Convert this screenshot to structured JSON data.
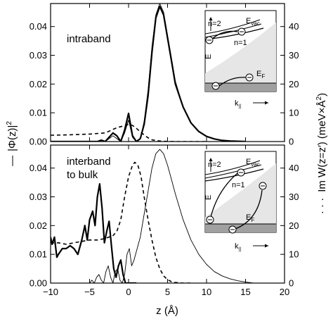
{
  "chart_data": [
    {
      "type": "line",
      "panel": "top",
      "annotation": "intraband",
      "xlim": [
        -10,
        20
      ],
      "ylim_left": [
        0,
        0.048
      ],
      "ylim_right": [
        0,
        48
      ],
      "left_ticks": [
        "0.00",
        "0.01",
        "0.02",
        "0.03",
        "0.04"
      ],
      "right_ticks": [
        "0",
        "10",
        "20",
        "30",
        "40"
      ],
      "series": [
        {
          "style": "thick-solid",
          "axis": "left",
          "x": [
            -10,
            -6,
            -4,
            -3.5,
            -3,
            -2.5,
            -2,
            -1.5,
            -1,
            -0.5,
            0,
            0.5,
            1,
            1.5,
            2,
            2.5,
            3,
            3.5,
            4,
            4.5,
            5,
            5.5,
            6,
            7,
            8,
            9,
            10,
            11,
            12,
            13,
            14,
            15
          ],
          "y": [
            0,
            0,
            0,
            0.0005,
            0,
            0.0015,
            0.003,
            0.002,
            0,
            0.004,
            0.0098,
            0.002,
            0,
            0.001,
            0.006,
            0.016,
            0.031,
            0.043,
            0.047,
            0.044,
            0.036,
            0.028,
            0.02,
            0.012,
            0.0065,
            0.0035,
            0.0018,
            0.0009,
            0.0004,
            0.0002,
            0.0001,
            0
          ]
        },
        {
          "style": "thin-solid",
          "axis": "left",
          "x": [
            -10,
            -6,
            -4,
            -3,
            -2.5,
            -2,
            -1.5,
            -1,
            -0.5,
            0,
            0.5,
            1,
            1.5,
            2,
            2.5,
            3,
            3.5,
            4,
            4.5,
            5,
            5.5,
            6,
            7,
            8,
            9,
            10,
            11,
            12,
            13,
            14,
            15
          ],
          "y": [
            0,
            0,
            0,
            0,
            0.001,
            0.002,
            0.001,
            0,
            0.003,
            0.0075,
            0.0015,
            0,
            0.001,
            0.007,
            0.018,
            0.033,
            0.044,
            0.048,
            0.045,
            0.037,
            0.029,
            0.021,
            0.012,
            0.0065,
            0.0035,
            0.0018,
            0.0009,
            0.0004,
            0.0002,
            0.0001,
            0
          ]
        },
        {
          "style": "dashed",
          "axis": "right",
          "x": [
            -10,
            -8,
            -6,
            -5,
            -4,
            -3,
            -2.5,
            -2,
            -1.5,
            -1,
            -0.5,
            0,
            0.5,
            1,
            1.5,
            2,
            2.5,
            3,
            4,
            5,
            6,
            8,
            10
          ],
          "y": [
            2.2,
            2.3,
            2.5,
            2.6,
            2.8,
            3.0,
            3.6,
            4.2,
            4.8,
            5.2,
            5.5,
            6.0,
            5.6,
            4.6,
            3.4,
            2.3,
            1.3,
            0.6,
            0.2,
            0.05,
            0,
            0,
            0
          ]
        }
      ],
      "inset": {
        "labels": [
          "n=2",
          "n=1",
          "E",
          "E",
          "vac",
          "E",
          "F",
          "k",
          "||"
        ]
      }
    },
    {
      "type": "line",
      "panel": "bottom",
      "annotation": [
        "interband",
        "to bulk"
      ],
      "xlim": [
        -10,
        20
      ],
      "ylim_left": [
        0,
        0.048
      ],
      "ylim_right": [
        0,
        48
      ],
      "left_ticks": [
        "0.00",
        "0.01",
        "0.02",
        "0.03",
        "0.04"
      ],
      "right_ticks": [
        "0",
        "10",
        "20",
        "30",
        "40"
      ],
      "x_ticks": [
        "−10",
        "−5",
        "0",
        "5",
        "10",
        "15",
        "20"
      ],
      "xlabel": "z (Å)",
      "series": [
        {
          "style": "thick-solid",
          "axis": "left",
          "x": [
            -10,
            -9.8,
            -9.5,
            -9.2,
            -9,
            -8.5,
            -8,
            -7.5,
            -7,
            -6.5,
            -6,
            -5.6,
            -5.3,
            -5,
            -4.6,
            -4.3,
            -4.0,
            -3.7,
            -3.4,
            -3.1,
            -2.8,
            -2.5,
            -2.2,
            -1.9,
            -1.6,
            -1.3,
            -1.0,
            -0.7,
            -0.4,
            -0.1,
            0.2,
            0.5,
            1
          ],
          "y": [
            0.016,
            0.0135,
            0.016,
            0.009,
            0.01,
            0.012,
            0.012,
            0.013,
            0.012,
            0.01,
            0.015,
            0.02,
            0.015,
            0.022,
            0.025,
            0.02,
            0.03,
            0.0345,
            0.026,
            0.014,
            0.018,
            0.0215,
            0.013,
            0.005,
            0.002,
            0.006,
            0.008,
            0.003,
            0,
            0,
            0,
            0,
            0
          ]
        },
        {
          "style": "thin-solid",
          "axis": "left",
          "x": [
            -10,
            -6,
            -5,
            -4.7,
            -4.4,
            -4.1,
            -3.8,
            -3.5,
            -3.2,
            -2.9,
            -2.6,
            -2.3,
            -2.0,
            -1.7,
            -1.4,
            -1.1,
            -0.8,
            -0.5,
            -0.2,
            0.1,
            0.4,
            0.7,
            1,
            1.5,
            2,
            2.5,
            3,
            3.5,
            4,
            4.5,
            5,
            5.5,
            6,
            7,
            8,
            9,
            10,
            11,
            12,
            13,
            14,
            15,
            16
          ],
          "y": [
            0,
            0,
            0,
            0.001,
            0,
            0.002,
            0.003,
            0.001,
            0,
            0.004,
            0.006,
            0.002,
            0,
            0.004,
            0.005,
            0.001,
            0,
            0.003,
            0.01,
            0.012,
            0.006,
            0.008,
            0.011,
            0.016,
            0.024,
            0.032,
            0.04,
            0.045,
            0.0465,
            0.045,
            0.041,
            0.036,
            0.031,
            0.022,
            0.015,
            0.01,
            0.0065,
            0.004,
            0.0025,
            0.0015,
            0.0008,
            0.0004,
            0
          ]
        },
        {
          "style": "dashed",
          "axis": "right",
          "x": [
            -10,
            -9,
            -8,
            -7,
            -6,
            -5,
            -4,
            -3,
            -2,
            -1.5,
            -1,
            -0.5,
            0,
            0.5,
            0.8,
            1.2,
            1.6,
            2,
            2.5,
            3,
            3.5,
            4,
            4.5,
            5,
            5.5,
            6,
            7,
            8
          ],
          "y": [
            14,
            14,
            13.5,
            14,
            14.5,
            15,
            15,
            15.5,
            16.5,
            18,
            22,
            30,
            37,
            41,
            42,
            41,
            37,
            30,
            22,
            15,
            9,
            5,
            2.5,
            1.2,
            0.5,
            0.2,
            0,
            0
          ]
        }
      ],
      "inset": {
        "labels": [
          "n=2",
          "n=1",
          "E",
          "E",
          "vac",
          "E",
          "F",
          "k",
          "||"
        ]
      }
    }
  ],
  "axes": {
    "left_label_line": "—",
    "left_label": "|Φ(z)|",
    "left_label_sup": "2",
    "right_label_dots": "· · ·",
    "right_label_main": "Im W(z=z′) (meV×Å",
    "right_label_sup": "2",
    "right_label_end": ")"
  },
  "colors": {
    "axis": "#000000",
    "surface_band_fill": "#e6e6e6",
    "bulk_band_fill": "#a0a0a0"
  }
}
